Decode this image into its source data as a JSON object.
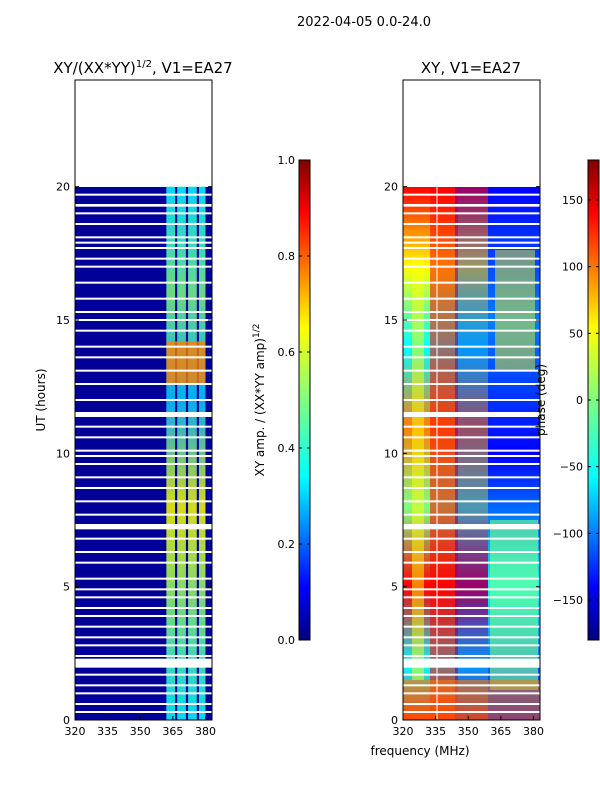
{
  "figure": {
    "suptitle": "2022-04-05 0.0-24.0"
  },
  "colors": {
    "jet": [
      "#00007f",
      "#0000ff",
      "#007fff",
      "#00ffff",
      "#7fff7f",
      "#ffff00",
      "#ff7f00",
      "#ff0000",
      "#7f0000"
    ],
    "gap": "#ffffff",
    "frame": "#000000"
  },
  "chart_data": [
    {
      "type": "heatmap",
      "title": "XY/(XX*YY)^1/2, V1=EA27",
      "title_main": "XY/(XX*YY)",
      "title_exp": "1/2",
      "title_tail": ", V1=EA27",
      "xlabel": "",
      "ylabel": "UT (hours)",
      "xlim": [
        320,
        383
      ],
      "ylim": [
        0,
        24
      ],
      "xticks": [
        "320",
        "335",
        "350",
        "365",
        "380"
      ],
      "yticks": [
        "0",
        "5",
        "10",
        "15",
        "20"
      ],
      "data_extent_hours": [
        0,
        20
      ],
      "strong_channels_mhz": [
        [
          362,
          366
        ],
        [
          367,
          371
        ],
        [
          372,
          376
        ],
        [
          377,
          380
        ]
      ],
      "gap_rows_hours": [
        0.3,
        0.6,
        1.0,
        1.3,
        1.7,
        2.0,
        2.1,
        2.2,
        2.4,
        2.8,
        3.1,
        3.5,
        3.9,
        4.2,
        4.6,
        4.9,
        5.3,
        5.9,
        6.3,
        6.8,
        7.2,
        7.3,
        7.7,
        8.2,
        8.7,
        9.1,
        9.6,
        9.9,
        10.1,
        10.6,
        11.0,
        11.4,
        11.5,
        12.0,
        12.6,
        13.1,
        13.6,
        14.0,
        14.6,
        15.0,
        15.3,
        15.8,
        16.4,
        17.0,
        17.3,
        17.7,
        17.9,
        18.1,
        18.6,
        19.0,
        19.3,
        19.7
      ],
      "colorbar": {
        "label": "XY amp. / (XX*YY amp)^1/2",
        "label_main": "XY amp. / (XX*YY amp)",
        "label_exp": "1/2",
        "range": [
          0.0,
          1.0
        ],
        "ticks": [
          "0.0",
          "0.2",
          "0.4",
          "0.6",
          "0.8",
          "1.0"
        ],
        "colormap": "jet"
      }
    },
    {
      "type": "heatmap",
      "title": "XY, V1=EA27",
      "xlabel": "frequency (MHz)",
      "ylabel": "",
      "xlim": [
        320,
        383
      ],
      "ylim": [
        0,
        24
      ],
      "xticks": [
        "320",
        "335",
        "350",
        "365",
        "380"
      ],
      "yticks": [
        "0",
        "5",
        "10",
        "15",
        "20"
      ],
      "data_extent_hours": [
        0,
        20
      ],
      "colorbar": {
        "label": "phase (deg)",
        "range": [
          -180,
          180
        ],
        "ticks": [
          "−150",
          "−100",
          "−50",
          "0",
          "50",
          "100",
          "150"
        ],
        "colormap": "jet"
      }
    }
  ]
}
